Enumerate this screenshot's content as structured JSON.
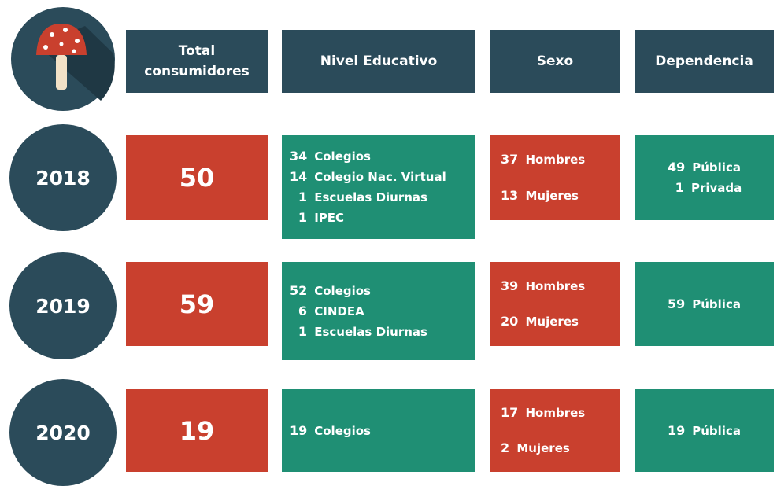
{
  "header": {
    "columns": [
      "Total consumidores",
      "Nivel Educativo",
      "Sexo",
      "Dependencia"
    ]
  },
  "rows": [
    {
      "year": "2018",
      "total": 50,
      "nivel": [
        {
          "n": 34,
          "label": "Colegios"
        },
        {
          "n": 14,
          "label": "Colegio Nac. Virtual"
        },
        {
          "n": 1,
          "label": "Escuelas Diurnas"
        },
        {
          "n": 1,
          "label": "IPEC"
        }
      ],
      "sexo": [
        {
          "n": 37,
          "label": "Hombres"
        },
        {
          "n": 13,
          "label": "Mujeres"
        }
      ],
      "dependencia": [
        {
          "n": 49,
          "label": "Pública"
        },
        {
          "n": 1,
          "label": "Privada"
        }
      ]
    },
    {
      "year": "2019",
      "total": 59,
      "nivel": [
        {
          "n": 52,
          "label": "Colegios"
        },
        {
          "n": 6,
          "label": "CINDEA"
        },
        {
          "n": 1,
          "label": "Escuelas Diurnas"
        }
      ],
      "sexo": [
        {
          "n": 39,
          "label": "Hombres"
        },
        {
          "n": 20,
          "label": "Mujeres"
        }
      ],
      "dependencia": [
        {
          "n": 59,
          "label": "Pública"
        }
      ]
    },
    {
      "year": "2020",
      "total": 19,
      "nivel": [
        {
          "n": 19,
          "label": "Colegios"
        }
      ],
      "sexo": [
        {
          "n": 17,
          "label": "Hombres"
        },
        {
          "n": 2,
          "label": "Mujeres"
        }
      ],
      "dependencia": [
        {
          "n": 19,
          "label": "Pública"
        }
      ]
    }
  ]
}
